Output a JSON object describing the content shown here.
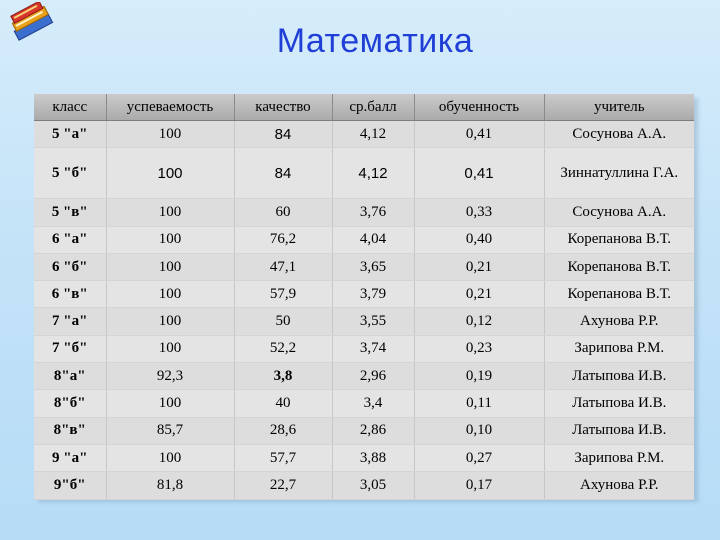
{
  "title": "Математика",
  "headers": [
    "класс",
    "успеваемость",
    "качество",
    "ср.балл",
    "обученность",
    "учитель"
  ],
  "rows": [
    {
      "class": "5 \"а\"",
      "progress": "100",
      "quality": "84",
      "avg": "4,12",
      "learn": "0,41",
      "teacher": "Сосунова А.А."
    },
    {
      "class": "5 \"б\"",
      "progress": "100",
      "quality": "84",
      "avg": "4,12",
      "learn": "0,41",
      "teacher": "Зиннатуллина Г.А."
    },
    {
      "class": "5 \"в\"",
      "progress": "100",
      "quality": "60",
      "avg": "3,76",
      "learn": "0,33",
      "teacher": "Сосунова А.А."
    },
    {
      "class": "6 \"а\"",
      "progress": "100",
      "quality": "76,2",
      "avg": "4,04",
      "learn": "0,40",
      "teacher": "Корепанова В.Т."
    },
    {
      "class": "6 \"б\"",
      "progress": "100",
      "quality": "47,1",
      "avg": "3,65",
      "learn": "0,21",
      "teacher": "Корепанова В.Т."
    },
    {
      "class": "6 \"в\"",
      "progress": "100",
      "quality": "57,9",
      "avg": "3,79",
      "learn": "0,21",
      "teacher": "Корепанова В.Т."
    },
    {
      "class": "7 \"а\"",
      "progress": "100",
      "quality": "50",
      "avg": "3,55",
      "learn": "0,12",
      "teacher": "Ахунова Р.Р."
    },
    {
      "class": "7 \"б\"",
      "progress": "100",
      "quality": "52,2",
      "avg": "3,74",
      "learn": "0,23",
      "teacher": "Зарипова Р.М."
    },
    {
      "class": "8\"а\"",
      "progress": "92,3",
      "quality": "3,8",
      "avg": "2,96",
      "learn": "0,19",
      "teacher": "Латыпова И.В."
    },
    {
      "class": "8\"б\"",
      "progress": "100",
      "quality": "40",
      "avg": "3,4",
      "learn": "0,11",
      "teacher": "Латыпова И.В."
    },
    {
      "class": "8\"в\"",
      "progress": "85,7",
      "quality": "28,6",
      "avg": "2,86",
      "learn": "0,10",
      "teacher": "Латыпова И.В."
    },
    {
      "class": "9 \"а\"",
      "progress": "100",
      "quality": "57,7",
      "avg": "3,88",
      "learn": "0,27",
      "teacher": "Зарипова Р.М."
    },
    {
      "class": "9\"б\"",
      "progress": "81,8",
      "quality": "22,7",
      "avg": "3,05",
      "learn": "0,17",
      "teacher": "Ахунова Р.Р."
    }
  ],
  "colors": {
    "title": "#1f3fd6",
    "header_bg": "#b4b4b4",
    "cell_bg": "#dedede"
  },
  "icons": {
    "logo": "books-icon"
  }
}
